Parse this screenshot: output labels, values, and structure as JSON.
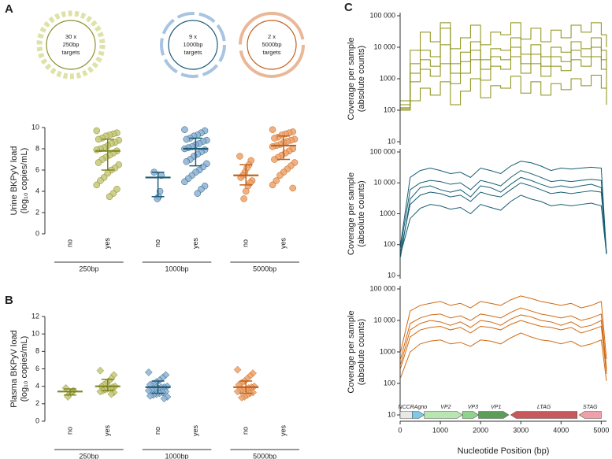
{
  "diagrams": [
    {
      "lines": [
        "30 x",
        "250bp",
        "targets"
      ]
    },
    {
      "lines": [
        "9 x",
        "1000bp",
        "targets"
      ]
    },
    {
      "lines": [
        "2 x",
        "5000bp",
        "targets"
      ]
    }
  ],
  "chart_data": [
    {
      "type": "strip",
      "panel": "A",
      "ylabel": [
        "Urine BKPyV load",
        "(log₁₀ copies/mL)"
      ],
      "ylim": [
        0,
        10
      ],
      "yticks": [
        0,
        2,
        4,
        6,
        8,
        10
      ],
      "marker": "circle",
      "groups": [
        {
          "name": "250bp",
          "color": "#c5c97a",
          "line": "#7f8420",
          "categories": [
            {
              "label": "no",
              "values": []
            },
            {
              "label": "yes",
              "values": [
                9.7,
                9.5,
                9.4,
                9.3,
                9.2,
                9.0,
                8.9,
                8.8,
                8.6,
                8.5,
                8.3,
                8.1,
                8.0,
                7.9,
                7.8,
                7.6,
                7.4,
                7.2,
                7.0,
                6.7,
                6.5,
                6.2,
                6.0,
                5.7,
                5.3,
                5.0,
                4.6,
                4.2,
                3.8,
                3.5
              ],
              "median": 7.8,
              "iqr": [
                6.0,
                8.9
              ]
            }
          ]
        },
        {
          "name": "1000bp",
          "color": "#8fb1d3",
          "line": "#1d5b78",
          "categories": [
            {
              "label": "no",
              "values": [
                5.8,
                5.5,
                4.0,
                3.5,
                3.3
              ],
              "median": 5.3,
              "iqr": [
                3.5,
                5.8
              ]
            },
            {
              "label": "yes",
              "values": [
                9.8,
                9.7,
                9.5,
                9.3,
                9.2,
                9.0,
                8.9,
                8.8,
                8.7,
                8.5,
                8.4,
                8.2,
                8.1,
                8.0,
                7.9,
                7.7,
                7.5,
                7.3,
                7.0,
                6.8,
                6.6,
                6.3,
                6.0,
                5.8,
                5.5,
                5.2,
                4.9,
                4.5,
                4.2,
                3.8
              ],
              "median": 8.0,
              "iqr": [
                6.4,
                9.0
              ]
            }
          ]
        },
        {
          "name": "5000bp",
          "color": "#eda36c",
          "line": "#c2621c",
          "categories": [
            {
              "label": "no",
              "values": [
                7.3,
                6.9,
                6.5,
                6.2,
                5.8,
                5.5,
                5.3,
                5.0,
                4.8,
                4.5,
                4.0,
                3.3
              ],
              "median": 5.5,
              "iqr": [
                4.6,
                6.5
              ]
            },
            {
              "label": "yes",
              "values": [
                9.8,
                9.6,
                9.5,
                9.4,
                9.3,
                9.1,
                9.0,
                8.9,
                8.8,
                8.7,
                8.6,
                8.4,
                8.3,
                8.2,
                8.0,
                7.8,
                7.6,
                7.4,
                7.2,
                7.0,
                6.7,
                6.4,
                6.1,
                5.8,
                5.5,
                5.0,
                4.6,
                4.3
              ],
              "median": 8.3,
              "iqr": [
                7.0,
                9.2
              ]
            }
          ]
        }
      ]
    },
    {
      "type": "strip",
      "panel": "B",
      "ylabel": [
        "Plasma BKPyV load",
        "(log₁₀ copies/mL)"
      ],
      "ylim": [
        0,
        12
      ],
      "yticks": [
        0,
        2,
        4,
        6,
        8,
        10,
        12
      ],
      "marker": "diamond",
      "groups": [
        {
          "name": "250bp",
          "color": "#c5c97a",
          "line": "#7f8420",
          "categories": [
            {
              "label": "no",
              "values": [
                3.8,
                3.5,
                3.4,
                3.3,
                3.1,
                2.8
              ],
              "median": 3.4,
              "iqr": [
                3.0,
                3.7
              ]
            },
            {
              "label": "yes",
              "values": [
                5.8,
                5.3,
                4.9,
                4.6,
                4.4,
                4.2,
                4.0,
                4.0,
                3.9,
                3.8,
                3.7,
                3.6,
                3.5,
                3.4,
                3.3,
                3.1
              ],
              "median": 4.0,
              "iqr": [
                3.5,
                4.8
              ]
            }
          ]
        },
        {
          "name": "1000bp",
          "color": "#8fb1d3",
          "line": "#1d5b78",
          "categories": [
            {
              "label": "no",
              "values": [
                5.6,
                5.3,
                5.0,
                4.7,
                4.5,
                4.3,
                4.2,
                4.0,
                3.9,
                3.9,
                3.8,
                3.7,
                3.6,
                3.5,
                3.4,
                3.3,
                3.2,
                3.1,
                3.0,
                2.9,
                2.8,
                2.6
              ],
              "median": 3.9,
              "iqr": [
                3.2,
                4.6
              ]
            },
            {
              "label": "yes",
              "values": []
            }
          ]
        },
        {
          "name": "5000bp",
          "color": "#eda36c",
          "line": "#c2621c",
          "categories": [
            {
              "label": "no",
              "values": [
                5.9,
                5.5,
                5.2,
                4.9,
                4.6,
                4.4,
                4.2,
                4.0,
                3.9,
                3.8,
                3.7,
                3.6,
                3.5,
                3.4,
                3.3,
                3.2,
                3.0,
                2.8,
                2.7
              ],
              "median": 3.9,
              "iqr": [
                3.2,
                4.6
              ]
            },
            {
              "label": "yes",
              "values": []
            }
          ]
        }
      ]
    },
    {
      "type": "line",
      "panel": "C",
      "step": true,
      "log_y": true,
      "ylabel": [
        "Coverage per sample",
        "(absolute counts)"
      ],
      "xlim": [
        0,
        5130
      ],
      "ylim": [
        10,
        100000
      ],
      "yticks": [
        10,
        100,
        1000,
        {
          "value": 10000,
          "label": "10 000"
        },
        {
          "value": 100000,
          "label": "100 000"
        }
      ],
      "x": [
        10,
        250,
        500,
        750,
        1000,
        1250,
        1500,
        1750,
        2000,
        2250,
        2500,
        2750,
        3000,
        3250,
        3500,
        3750,
        4000,
        4250,
        4500,
        4750,
        5000,
        5130
      ],
      "series": [
        {
          "color": "#8a8f12",
          "values": [
            200,
            8000,
            30000,
            15000,
            40000,
            9000,
            20000,
            50000,
            12000,
            30000,
            25000,
            60000,
            18000,
            40000,
            15000,
            35000,
            20000,
            50000,
            30000,
            60000,
            25000,
            10000
          ]
        },
        {
          "color": "#8a8f12",
          "values": [
            150,
            3000,
            8000,
            5000,
            12000,
            3000,
            7000,
            15000,
            4000,
            9000,
            8000,
            20000,
            6000,
            12000,
            5000,
            10000,
            7000,
            15000,
            9000,
            20000,
            8000,
            2000
          ]
        },
        {
          "color": "#8a8f12",
          "values": [
            120,
            800,
            2000,
            1200,
            3000,
            700,
            1500,
            4000,
            900,
            2500,
            2000,
            5000,
            1500,
            3000,
            1200,
            2500,
            1800,
            4000,
            2500,
            5000,
            2000,
            400
          ]
        },
        {
          "color": "#8a8f12",
          "values": [
            100,
            200,
            500,
            300,
            800,
            150,
            400,
            1000,
            250,
            600,
            500,
            1200,
            350,
            800,
            300,
            700,
            450,
            1000,
            600,
            1300,
            500,
            150
          ]
        },
        {
          "color": "#8a8f12",
          "values": [
            110,
            1500,
            4000,
            2500,
            60000,
            1500,
            3500,
            8000,
            2000,
            5000,
            4000,
            10000,
            3000,
            6000,
            2500,
            5000,
            3500,
            8000,
            5000,
            10000,
            4000,
            800
          ]
        }
      ]
    },
    {
      "type": "line",
      "log_y": true,
      "ylabel": [
        "Coverage per sample",
        "(absolute counts)"
      ],
      "xlim": [
        0,
        5130
      ],
      "ylim": [
        10,
        100000
      ],
      "yticks": [
        10,
        100,
        1000,
        {
          "value": 10000,
          "label": "10 000"
        },
        {
          "value": 100000,
          "label": "100 000"
        }
      ],
      "x": [
        10,
        250,
        500,
        750,
        1000,
        1250,
        1500,
        1750,
        2000,
        2250,
        2500,
        2750,
        3000,
        3250,
        3500,
        3750,
        4000,
        4250,
        4500,
        4750,
        5000,
        5130
      ],
      "series": [
        {
          "color": "#155e72",
          "values": [
            100,
            15000,
            25000,
            30000,
            25000,
            20000,
            22000,
            15000,
            30000,
            25000,
            20000,
            35000,
            50000,
            45000,
            35000,
            25000,
            30000,
            28000,
            30000,
            32000,
            30000,
            50
          ]
        },
        {
          "color": "#155e72",
          "values": [
            80,
            6000,
            10000,
            12000,
            11000,
            9000,
            10000,
            6000,
            12000,
            10000,
            8000,
            15000,
            25000,
            20000,
            15000,
            11000,
            12000,
            11000,
            12000,
            13000,
            12000,
            50
          ]
        },
        {
          "color": "#155e72",
          "values": [
            60,
            2000,
            4000,
            5000,
            4500,
            3500,
            4000,
            2500,
            5000,
            4000,
            3500,
            6000,
            10000,
            8000,
            6000,
            4500,
            5000,
            4500,
            5000,
            5500,
            5000,
            50
          ]
        },
        {
          "color": "#155e72",
          "values": [
            50,
            700,
            1500,
            2000,
            1800,
            1400,
            1600,
            1000,
            2000,
            1600,
            1300,
            2500,
            4000,
            3000,
            2500,
            1800,
            2000,
            1800,
            2000,
            2200,
            1800,
            50
          ]
        },
        {
          "color": "#155e72",
          "values": [
            40,
            3000,
            7000,
            8000,
            6000,
            5000,
            6000,
            3500,
            8000,
            7000,
            5000,
            9000,
            15000,
            12000,
            9000,
            7000,
            8000,
            7000,
            8000,
            9000,
            7000,
            50
          ]
        }
      ]
    },
    {
      "type": "line",
      "log_y": true,
      "ylabel": [
        "Coverage per sample",
        "(absolute counts)"
      ],
      "xlabel": "Nucleotide Position (bp)",
      "xlim": [
        0,
        5130
      ],
      "ylim": [
        10,
        100000
      ],
      "xticks": [
        0,
        1000,
        2000,
        3000,
        4000,
        5000
      ],
      "yticks": [
        10,
        100,
        1000,
        {
          "value": 10000,
          "label": "10 000"
        },
        {
          "value": 100000,
          "label": "100 000"
        }
      ],
      "x": [
        10,
        250,
        500,
        750,
        1000,
        1250,
        1500,
        1750,
        2000,
        2250,
        2500,
        2750,
        3000,
        3250,
        3500,
        3750,
        4000,
        4250,
        4500,
        4750,
        5000,
        5130
      ],
      "series": [
        {
          "color": "#d06a12",
          "values": [
            1000,
            20000,
            30000,
            35000,
            40000,
            30000,
            35000,
            25000,
            40000,
            35000,
            30000,
            45000,
            60000,
            50000,
            40000,
            35000,
            30000,
            35000,
            25000,
            30000,
            40000,
            600
          ]
        },
        {
          "color": "#d06a12",
          "values": [
            600,
            8000,
            12000,
            15000,
            16000,
            12000,
            14000,
            10000,
            16000,
            14000,
            12000,
            18000,
            25000,
            20000,
            16000,
            14000,
            12000,
            14000,
            10000,
            12000,
            16000,
            300
          ]
        },
        {
          "color": "#d06a12",
          "values": [
            300,
            3000,
            5000,
            6000,
            6500,
            5000,
            6000,
            4000,
            6500,
            6000,
            5000,
            7500,
            10000,
            8000,
            6500,
            6000,
            5000,
            6000,
            4000,
            5000,
            6500,
            200
          ]
        },
        {
          "color": "#d06a12",
          "values": [
            150,
            1000,
            1800,
            2200,
            2400,
            1800,
            2000,
            1500,
            2400,
            2200,
            1800,
            2800,
            4000,
            3000,
            2400,
            2200,
            1800,
            2200,
            1500,
            1800,
            2400,
            120
          ]
        },
        {
          "color": "#d06a12",
          "values": [
            400,
            5000,
            8000,
            10000,
            9000,
            7000,
            9000,
            6000,
            10000,
            9000,
            7000,
            11000,
            15000,
            13000,
            10000,
            9000,
            7000,
            9000,
            6000,
            7000,
            10000,
            250
          ]
        }
      ],
      "features": [
        {
          "name": "NCCR",
          "start": 0,
          "end": 300,
          "color": "#e8e8e8",
          "strand": "none"
        },
        {
          "name": "Agno",
          "start": 300,
          "end": 600,
          "color": "#7fc8e8",
          "strand": "+"
        },
        {
          "name": "VP2",
          "start": 600,
          "end": 1550,
          "color": "#b8e6b0",
          "strand": "+"
        },
        {
          "name": "VP3",
          "start": 1550,
          "end": 1950,
          "color": "#8fd48a",
          "strand": "+"
        },
        {
          "name": "VP1",
          "start": 1950,
          "end": 2700,
          "color": "#5a9e58",
          "strand": "+"
        },
        {
          "name": "LTAG",
          "start": 2750,
          "end": 4400,
          "color": "#c8585c",
          "strand": "-"
        },
        {
          "name": "STAG",
          "start": 4450,
          "end": 5000,
          "color": "#f0a0a8",
          "strand": "-"
        }
      ]
    }
  ]
}
